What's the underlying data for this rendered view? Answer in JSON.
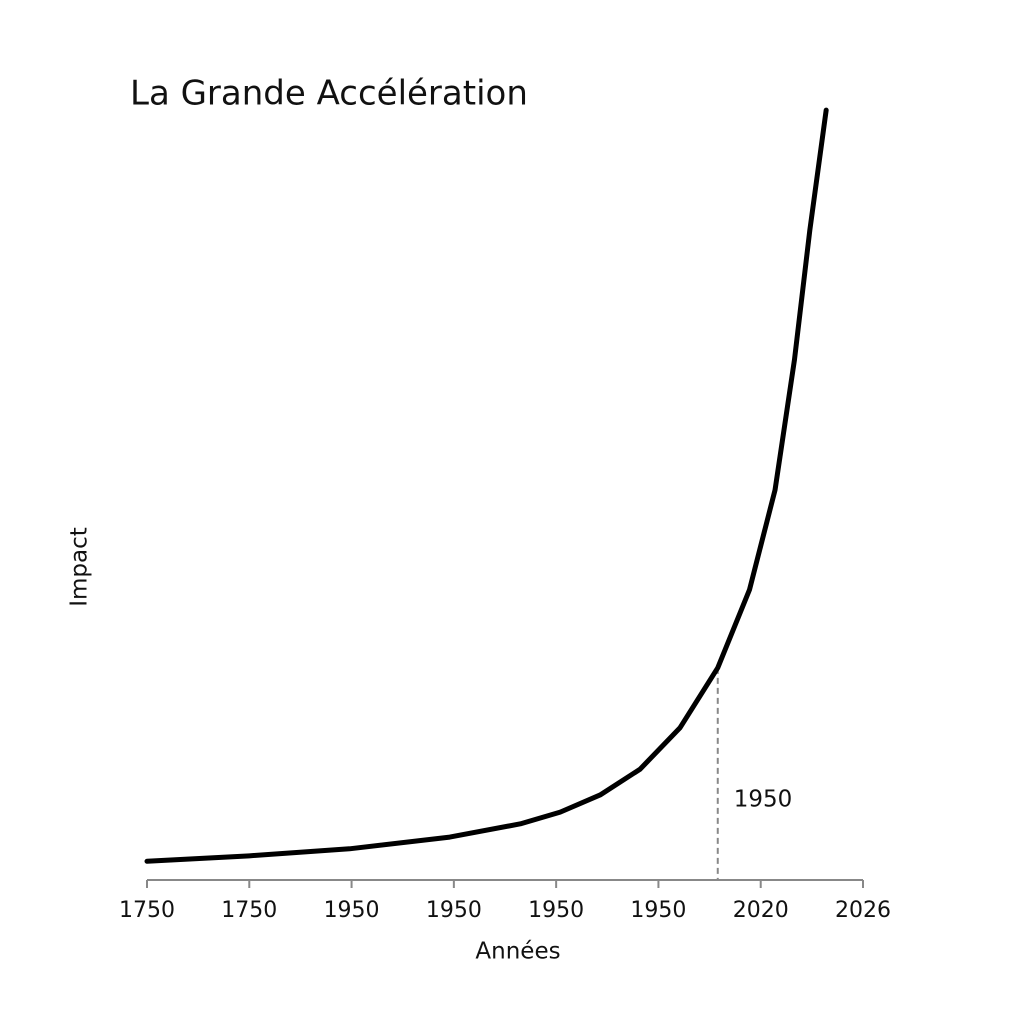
{
  "chart_data": {
    "type": "line",
    "title": "La Grande Accélération",
    "xlabel": "Années",
    "ylabel": "Impact",
    "xlim": [
      0,
      7
    ],
    "xticks": [
      {
        "value": 0,
        "label": "1750"
      },
      {
        "value": 1,
        "label": "1750"
      },
      {
        "value": 2,
        "label": "1950"
      },
      {
        "value": 3,
        "label": "1950"
      },
      {
        "value": 4,
        "label": "1950"
      },
      {
        "value": 5,
        "label": "1950"
      },
      {
        "value": 6,
        "label": "2020"
      },
      {
        "value": 7,
        "label": "2026"
      }
    ],
    "ylim": [
      0,
      100
    ],
    "series": [
      {
        "color": "#000000",
        "x": [
          0,
          1.0,
          1.98,
          2.96,
          3.65,
          4.04,
          4.43,
          4.82,
          5.21,
          5.58,
          5.89,
          6.14,
          6.33,
          6.48,
          6.64
        ],
        "values": [
          2.4,
          3.1,
          4.0,
          5.5,
          7.2,
          8.7,
          10.9,
          14.2,
          19.5,
          27.2,
          37.2,
          50.0,
          66.7,
          83.3,
          98.7
        ]
      }
    ],
    "annotations": [
      {
        "text": "1950",
        "x": 5.58,
        "y": 27.2
      }
    ]
  }
}
